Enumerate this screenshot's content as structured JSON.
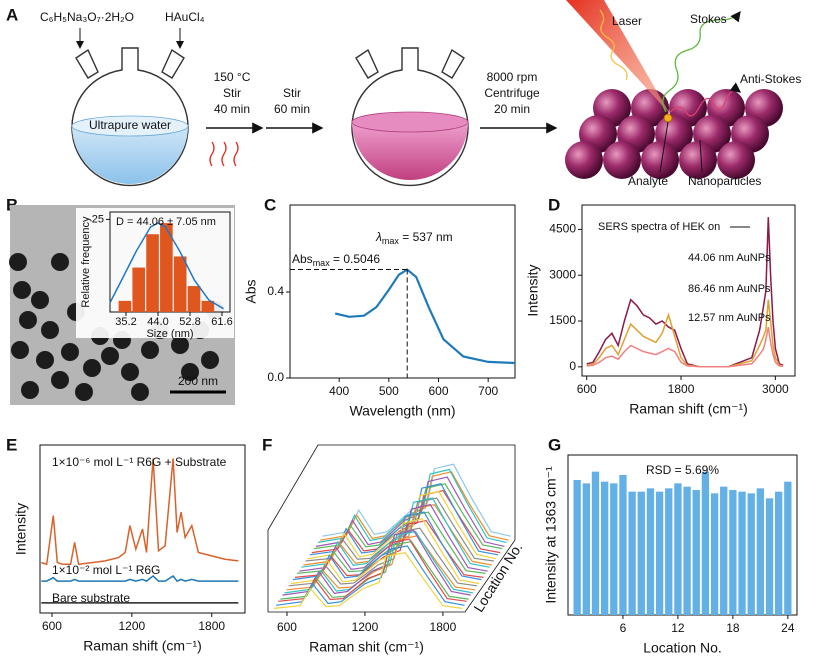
{
  "panel_labels": [
    "A",
    "B",
    "C",
    "D",
    "E",
    "F",
    "G"
  ],
  "schematic": {
    "reagent_1": "C₆H₅Na₃O₇·2H₂O",
    "reagent_2": "HAuCl₄",
    "solvent": "Ultrapure water",
    "step_1": [
      "150 °C",
      "Stir",
      "40 min"
    ],
    "step_2": [
      "Stir",
      "60 min"
    ],
    "step_3": [
      "8000 rpm",
      "Centrifuge",
      "20 min"
    ],
    "laser": "Laser",
    "stokes": "Stokes",
    "anti_stokes": "Anti-Stokes",
    "analyte": "Analyte",
    "nanoparticles": "Nanoparticles"
  },
  "tem": {
    "scale_bar": "200 nm"
  },
  "chart_data": [
    {
      "type": "histogram",
      "annotation": "D = 44.06 ± 7.05 nm",
      "xlabel": "Size (nm)",
      "ylabel": "Relative frequency",
      "bins": [
        33,
        36.8,
        40.6,
        44.4,
        48.2,
        52,
        55.8,
        59.6
      ],
      "counts": [
        3,
        12,
        21,
        24,
        15,
        7,
        3
      ],
      "color": "#e0561f",
      "fit": {
        "x": [
          30.8,
          34,
          38,
          42,
          44,
          46,
          50,
          54,
          58,
          62
        ],
        "values": [
          2.5,
          8.6,
          16.4,
          23,
          24,
          23,
          16.4,
          8.6,
          3.2,
          0.9
        ],
        "color": "#1f77c4"
      },
      "xlim": [
        30.8,
        63.8
      ],
      "xticks": [
        35.2,
        {
          "value": 44.0,
          "label": "44.0"
        },
        52.8,
        61.6
      ],
      "ylim": [
        0,
        27
      ],
      "yticks": [
        25
      ]
    },
    {
      "type": "line",
      "xlabel": "Wavelength (nm)",
      "ylabel": "Abs",
      "x": [
        392,
        420,
        450,
        475,
        500,
        520,
        537,
        555,
        580,
        610,
        650,
        700,
        754
      ],
      "series": [
        {
          "color": "#1f7ab8",
          "values": [
            0.3,
            0.285,
            0.29,
            0.33,
            0.41,
            0.48,
            0.5046,
            0.47,
            0.33,
            0.18,
            0.1,
            0.075,
            0.07
          ]
        }
      ],
      "xlim": [
        301,
        754
      ],
      "xticks": [
        400,
        500,
        600,
        700
      ],
      "ylim": [
        0,
        0.805
      ],
      "yticks": [
        {
          "value": 0,
          "label": "0.0"
        },
        0.4
      ],
      "peak": {
        "x": 537,
        "y": 0.5046
      },
      "lambda_label": {
        "symbol": "λ",
        "sub": "max",
        "rest": " = 537 nm"
      },
      "abs_label": {
        "symbol": "Abs",
        "sub": "max",
        "rest": " = 0.5046"
      }
    },
    {
      "type": "line",
      "legend_title": "SERS spectra of HEK on",
      "xlabel": "Raman shift (cm⁻¹)",
      "ylabel": "Intensity",
      "x": [
        600,
        680,
        760,
        840,
        920,
        1000,
        1080,
        1160,
        1240,
        1320,
        1400,
        1480,
        1560,
        1640,
        1720,
        1800,
        1880,
        1960,
        2040,
        2400,
        2700,
        2800,
        2850,
        2880,
        2910,
        2940,
        2970,
        3000,
        3050,
        3100
      ],
      "series": [
        {
          "name": "44.06 nm AuNPs",
          "color": "#8b1a4a",
          "values": [
            100,
            150,
            500,
            900,
            1100,
            700,
            1500,
            2200,
            2000,
            1700,
            1600,
            1400,
            1500,
            1300,
            1200,
            600,
            100,
            50,
            0,
            0,
            300,
            1200,
            2000,
            2500,
            4900,
            3000,
            1500,
            600,
            100,
            50
          ]
        },
        {
          "name": "86.46 nm AuNPs",
          "color": "#e0a030",
          "values": [
            50,
            80,
            300,
            600,
            700,
            400,
            900,
            1400,
            1200,
            1000,
            900,
            800,
            1100,
            1700,
            1000,
            300,
            50,
            30,
            0,
            0,
            200,
            700,
            1000,
            1200,
            2200,
            1500,
            700,
            300,
            50,
            30
          ]
        },
        {
          "name": "12.57 nm AuNPs",
          "color": "#f08080",
          "values": [
            30,
            50,
            150,
            300,
            350,
            250,
            500,
            700,
            600,
            500,
            450,
            400,
            500,
            600,
            500,
            150,
            30,
            20,
            0,
            0,
            100,
            400,
            600,
            900,
            1300,
            800,
            400,
            150,
            30,
            20
          ]
        }
      ],
      "xlim": [
        540,
        3250
      ],
      "xticks": [
        600,
        1800,
        3000
      ],
      "ylim": [
        -300,
        5300
      ],
      "yticks": [
        0,
        1500,
        3000,
        4500
      ]
    },
    {
      "type": "line",
      "xlabel": "Raman shift (cm⁻¹)",
      "ylabel": "Intensity",
      "x": [
        520,
        560,
        610,
        640,
        680,
        740,
        770,
        800,
        900,
        1000,
        1100,
        1150,
        1185,
        1230,
        1280,
        1310,
        1360,
        1400,
        1450,
        1510,
        1540,
        1570,
        1600,
        1650,
        1700,
        1800,
        1900,
        2000
      ],
      "series": [
        {
          "name": "1×10⁻⁶ mol L⁻¹ R6G + Substrate",
          "color": "#d9622b",
          "values": [
            30,
            29,
            58,
            30,
            29,
            29,
            42,
            29,
            30,
            31,
            33,
            36,
            52,
            38,
            50,
            36,
            92,
            37,
            40,
            92,
            48,
            60,
            45,
            52,
            36,
            34,
            32,
            31
          ]
        },
        {
          "name": "1×10⁻² mol L⁻¹ R6G",
          "color": "#1f77b4",
          "values": [
            19,
            19,
            21,
            19,
            19,
            19,
            20,
            19,
            19,
            19,
            19,
            19,
            20,
            19,
            20,
            19,
            22,
            19,
            19,
            22,
            19,
            20,
            19,
            20,
            19,
            19,
            19,
            19
          ]
        },
        {
          "name": "Bare substrate",
          "color": "#222222",
          "values": [
            6,
            6,
            6,
            6,
            6,
            6,
            6,
            6,
            6,
            6,
            6,
            6,
            6,
            6,
            6,
            6,
            6,
            6,
            6,
            6,
            6,
            6,
            6,
            6,
            6,
            6,
            6,
            6
          ]
        }
      ],
      "xlim": [
        510,
        2050
      ],
      "xticks": [
        600,
        1200,
        1800
      ],
      "ylim": [
        0,
        100
      ]
    },
    {
      "type": "waterfall",
      "xlabel": "Raman shit (cm⁻¹)",
      "zlabel": "Location No.",
      "x": [
        500,
        700,
        780,
        900,
        1000,
        1185,
        1310,
        1363,
        1510,
        1650,
        1800,
        1950
      ],
      "series": [
        {
          "color": "#f2d23c",
          "values": [
            4,
            7,
            26,
            6,
            7,
            26,
            33,
            62,
            66,
            37,
            7,
            4
          ]
        },
        {
          "color": "#3a8fd9",
          "values": [
            4,
            8,
            28,
            6,
            8,
            28,
            35,
            66,
            70,
            39,
            8,
            4
          ]
        },
        {
          "color": "#e04a4a",
          "values": [
            5,
            8,
            30,
            7,
            8,
            30,
            37,
            70,
            74,
            41,
            8,
            5
          ]
        },
        {
          "color": "#5cb85c",
          "values": [
            4,
            7,
            27,
            6,
            7,
            27,
            34,
            64,
            68,
            38,
            7,
            4
          ]
        },
        {
          "color": "#9b59b6",
          "values": [
            5,
            9,
            31,
            7,
            9,
            31,
            39,
            72,
            77,
            43,
            9,
            5
          ]
        },
        {
          "color": "#2ec4c4",
          "values": [
            4,
            8,
            29,
            6,
            8,
            29,
            36,
            68,
            72,
            40,
            8,
            4
          ]
        },
        {
          "color": "#f08c2e",
          "values": [
            4,
            7,
            25,
            6,
            7,
            25,
            32,
            60,
            64,
            36,
            7,
            4
          ]
        },
        {
          "color": "#8c8c8c",
          "values": [
            5,
            8,
            28,
            7,
            8,
            28,
            35,
            65,
            69,
            39,
            8,
            5
          ]
        },
        {
          "color": "#f2d23c",
          "values": [
            4,
            8,
            30,
            6,
            8,
            30,
            38,
            71,
            76,
            42,
            8,
            4
          ]
        },
        {
          "color": "#3a8fd9",
          "values": [
            5,
            9,
            32,
            7,
            9,
            32,
            40,
            75,
            80,
            44,
            9,
            5
          ]
        },
        {
          "color": "#e04a4a",
          "values": [
            4,
            7,
            27,
            6,
            7,
            27,
            34,
            63,
            67,
            37,
            7,
            4
          ]
        },
        {
          "color": "#5cb85c",
          "values": [
            5,
            8,
            29,
            7,
            8,
            29,
            37,
            69,
            73,
            41,
            8,
            5
          ]
        },
        {
          "color": "#9b59b6",
          "values": [
            4,
            8,
            31,
            6,
            8,
            31,
            39,
            73,
            78,
            43,
            8,
            4
          ]
        },
        {
          "color": "#2ec4c4",
          "values": [
            5,
            9,
            33,
            7,
            9,
            33,
            41,
            77,
            82,
            46,
            9,
            5
          ]
        },
        {
          "color": "#f08c2e",
          "values": [
            4,
            8,
            28,
            6,
            8,
            28,
            36,
            67,
            71,
            40,
            8,
            4
          ]
        },
        {
          "color": "#8c8c8c",
          "values": [
            5,
            8,
            30,
            7,
            8,
            30,
            38,
            70,
            75,
            42,
            8,
            5
          ]
        },
        {
          "color": "#f2d23c",
          "values": [
            4,
            9,
            32,
            6,
            9,
            32,
            40,
            74,
            79,
            44,
            9,
            4
          ]
        },
        {
          "color": "#3a8fd9",
          "values": [
            5,
            9,
            34,
            7,
            9,
            34,
            42,
            79,
            84,
            47,
            9,
            5
          ]
        },
        {
          "color": "#e04a4a",
          "values": [
            4,
            8,
            29,
            6,
            8,
            29,
            37,
            68,
            73,
            41,
            8,
            4
          ]
        },
        {
          "color": "#5cb85c",
          "values": [
            5,
            9,
            31,
            7,
            9,
            31,
            39,
            72,
            77,
            43,
            9,
            5
          ]
        },
        {
          "color": "#9b59b6",
          "values": [
            4,
            9,
            33,
            6,
            9,
            33,
            41,
            76,
            81,
            45,
            9,
            4
          ]
        },
        {
          "color": "#2ec4c4",
          "values": [
            5,
            10,
            35,
            7,
            10,
            35,
            43,
            81,
            86,
            48,
            10,
            5
          ]
        },
        {
          "color": "#f08c2e",
          "values": [
            4,
            9,
            32,
            6,
            9,
            32,
            40,
            75,
            80,
            44,
            9,
            4
          ]
        },
        {
          "color": "#8cc8f0",
          "values": [
            5,
            10,
            34,
            7,
            10,
            34,
            42,
            80,
            85,
            47,
            10,
            5
          ]
        }
      ],
      "xlim": [
        454,
        1970
      ],
      "xticks": [
        600,
        1200,
        1800
      ],
      "ylim": [
        0,
        100
      ]
    },
    {
      "type": "bar",
      "annotation": "RSD = 5.69%",
      "xlabel": "Location No.",
      "ylabel": "Intensity at 1363 cm⁻¹",
      "x": [
        1,
        2,
        3,
        4,
        5,
        6,
        7,
        8,
        9,
        10,
        11,
        12,
        13,
        14,
        15,
        16,
        17,
        18,
        19,
        20,
        21,
        22,
        23,
        24
      ],
      "values": [
        0.81,
        0.79,
        0.86,
        0.8,
        0.79,
        0.84,
        0.74,
        0.74,
        0.76,
        0.74,
        0.76,
        0.79,
        0.77,
        0.75,
        0.86,
        0.73,
        0.77,
        0.75,
        0.74,
        0.73,
        0.76,
        0.7,
        0.74,
        0.8
      ],
      "color": "#63b0e6",
      "xlim": [
        0,
        25
      ],
      "xticks": [
        6,
        12,
        18,
        24
      ],
      "ylim": [
        0,
        0.96
      ]
    }
  ]
}
